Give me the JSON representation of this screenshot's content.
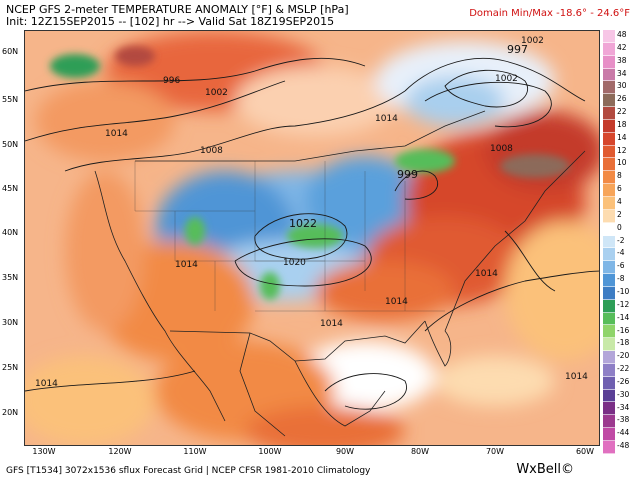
{
  "header": {
    "title": "NCEP GFS 2-meter TEMPERATURE ANOMALY [°F] & MSLP [hPa]",
    "subtitle": "Init: 12Z15SEP2015 -- [102] hr --> Valid Sat 18Z19SEP2015",
    "domain_minmax": "Domain Min/Max -18.6° - 24.6°F"
  },
  "footer": {
    "text": "GFS [T1534] 3072x1536 sflux Forecast Grid | NCEP CFSR 1981-2010 Climatology",
    "brand": "WxBell©"
  },
  "map": {
    "lat_labels": [
      "60N",
      "55N",
      "50N",
      "45N",
      "40N",
      "35N",
      "30N",
      "25N",
      "20N"
    ],
    "lon_labels": [
      "130W",
      "120W",
      "110W",
      "100W",
      "90W",
      "80W",
      "70W",
      "60W"
    ],
    "isobar_labels": [
      "996",
      "1002",
      "1014",
      "1008",
      "1014",
      "1022",
      "1020",
      "1014",
      "1014",
      "1014",
      "1014",
      "1014",
      "1008",
      "1002",
      "1002",
      "997",
      "999"
    ],
    "pressure_centers": {
      "low_ne": "997",
      "low_lakes": "999",
      "high_central": "1022"
    }
  },
  "colorbar": {
    "labels": [
      "48",
      "42",
      "38",
      "34",
      "30",
      "26",
      "22",
      "18",
      "14",
      "12",
      "10",
      "8",
      "6",
      "4",
      "2",
      "0",
      "-2",
      "-4",
      "-6",
      "-8",
      "-10",
      "-12",
      "-14",
      "-16",
      "-18",
      "-20",
      "-22",
      "-26",
      "-30",
      "-34",
      "-38",
      "-44",
      "-48"
    ],
    "colors": [
      "#f7c6e6",
      "#f0a6d6",
      "#e78fc7",
      "#c97aa8",
      "#a26a6a",
      "#8c6b5a",
      "#b24a40",
      "#c43b2c",
      "#d6462c",
      "#e05a30",
      "#e96f38",
      "#f28a45",
      "#f7a55a",
      "#fbc17a",
      "#fddcb0",
      "#ffffff",
      "#cfe6f7",
      "#a9d0f0",
      "#7fb6e6",
      "#4f95d6",
      "#3d7dc4",
      "#2e9e57",
      "#57bd5a",
      "#8fd46a",
      "#c8e9a8",
      "#b3a6d9",
      "#8e7fc6",
      "#6f5fb0",
      "#5a3f96",
      "#7a2f86",
      "#9c3a8f",
      "#c04aa5",
      "#e070c0"
    ]
  }
}
